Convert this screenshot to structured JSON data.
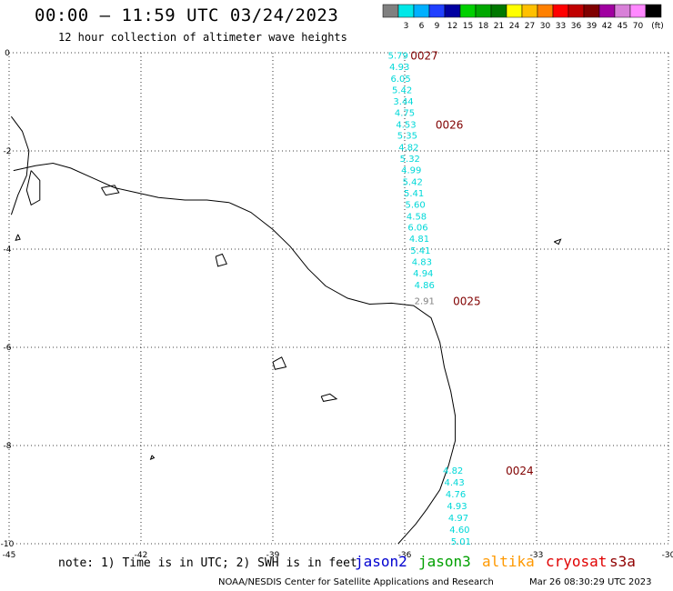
{
  "title": "00:00 — 11:59 UTC 03/24/2023",
  "subtitle": "12 hour collection of altimeter wave heights",
  "legend": {
    "unit": "(ft)",
    "swatches": [
      {
        "label": "",
        "color": "#808080"
      },
      {
        "label": "3",
        "color": "#00e8e8"
      },
      {
        "label": "6",
        "color": "#00b0ff"
      },
      {
        "label": "9",
        "color": "#2040ff"
      },
      {
        "label": "12",
        "color": "#0000a0"
      },
      {
        "label": "15",
        "color": "#00d000"
      },
      {
        "label": "18",
        "color": "#00a800"
      },
      {
        "label": "21",
        "color": "#007800"
      },
      {
        "label": "24",
        "color": "#ffff00"
      },
      {
        "label": "27",
        "color": "#ffc000"
      },
      {
        "label": "30",
        "color": "#ff8000"
      },
      {
        "label": "33",
        "color": "#ff0000"
      },
      {
        "label": "36",
        "color": "#c00000"
      },
      {
        "label": "39",
        "color": "#800000"
      },
      {
        "label": "42",
        "color": "#a000a0"
      },
      {
        "label": "45",
        "color": "#d880d8"
      },
      {
        "label": "70",
        "color": "#ff88ff"
      },
      {
        "label": "",
        "color": "#000000"
      }
    ]
  },
  "axes": {
    "x_ticks": [
      {
        "value": -45,
        "label": "-45"
      },
      {
        "value": -42,
        "label": "-42"
      },
      {
        "value": -39,
        "label": "-39"
      },
      {
        "value": -36,
        "label": "-36"
      },
      {
        "value": -33,
        "label": "-33"
      },
      {
        "value": -30,
        "label": "-30"
      }
    ],
    "y_ticks": [
      {
        "value": 0,
        "label": "0"
      },
      {
        "value": -2,
        "label": "-2"
      },
      {
        "value": -4,
        "label": "-4"
      },
      {
        "value": -6,
        "label": "-6"
      },
      {
        "value": -8,
        "label": "-8"
      },
      {
        "value": -10,
        "label": "-10"
      }
    ],
    "xlim": [
      -45,
      -30
    ],
    "ylim": [
      -10,
      0
    ]
  },
  "colors": {
    "cyan": "#00d8d8",
    "gray": "#808080",
    "time_label": "#800000",
    "coast": "#000000"
  },
  "tracks": [
    {
      "time_label": "0027",
      "time_label_pos": {
        "lon": -35.87,
        "lat": -0.05
      },
      "points": [
        {
          "lon": -36.15,
          "lat": -0.05,
          "value": "5.79"
        },
        {
          "lon": -36.12,
          "lat": -0.28,
          "value": "4.93"
        },
        {
          "lon": -36.09,
          "lat": -0.52,
          "value": "6.05"
        },
        {
          "lon": -36.06,
          "lat": -0.75,
          "value": "5.42"
        },
        {
          "lon": -36.03,
          "lat": -0.98,
          "value": "3.44"
        },
        {
          "lon": -36.0,
          "lat": -1.21,
          "value": "4.75"
        },
        {
          "lon": -35.97,
          "lat": -1.45,
          "value": "4.53"
        },
        {
          "lon": -35.94,
          "lat": -1.68,
          "value": "5.35"
        },
        {
          "lon": -35.91,
          "lat": -1.92,
          "value": "4.82"
        },
        {
          "lon": -35.88,
          "lat": -2.15,
          "value": "5.32"
        },
        {
          "lon": -35.85,
          "lat": -2.38,
          "value": "4.99"
        },
        {
          "lon": -35.82,
          "lat": -2.62,
          "value": "5.42"
        },
        {
          "lon": -35.79,
          "lat": -2.85,
          "value": "5.41"
        },
        {
          "lon": -35.76,
          "lat": -3.08,
          "value": "5.60"
        },
        {
          "lon": -35.73,
          "lat": -3.32,
          "value": "4.58"
        },
        {
          "lon": -35.7,
          "lat": -3.55,
          "value": "6.06"
        },
        {
          "lon": -35.67,
          "lat": -3.78,
          "value": "4.81"
        },
        {
          "lon": -35.64,
          "lat": -4.02,
          "value": "5.41"
        },
        {
          "lon": -35.61,
          "lat": -4.25,
          "value": "4.83"
        },
        {
          "lon": -35.58,
          "lat": -4.48,
          "value": "4.94"
        },
        {
          "lon": -35.55,
          "lat": -4.72,
          "value": "4.86"
        }
      ]
    },
    {
      "time_label": "0026",
      "time_label_pos": {
        "lon": -35.3,
        "lat": -1.45
      },
      "points": []
    },
    {
      "time_label": "0025",
      "time_label_pos": {
        "lon": -34.9,
        "lat": -5.05
      },
      "points": [
        {
          "lon": -35.55,
          "lat": -5.05,
          "value": "2.91",
          "gray": true
        }
      ]
    },
    {
      "time_label": "0024",
      "time_label_pos": {
        "lon": -33.7,
        "lat": -8.5
      },
      "points": [
        {
          "lon": -34.9,
          "lat": -8.5,
          "value": "4.82"
        },
        {
          "lon": -34.87,
          "lat": -8.74,
          "value": "4.43"
        },
        {
          "lon": -34.84,
          "lat": -8.98,
          "value": "4.76"
        },
        {
          "lon": -34.81,
          "lat": -9.22,
          "value": "4.93"
        },
        {
          "lon": -34.78,
          "lat": -9.46,
          "value": "4.97"
        },
        {
          "lon": -34.75,
          "lat": -9.7,
          "value": "4.60"
        },
        {
          "lon": -34.72,
          "lat": -9.94,
          "value": "5.01"
        }
      ]
    }
  ],
  "coastline": [
    [
      -44.9,
      -2.4
    ],
    [
      -44.4,
      -2.3
    ],
    [
      -44.0,
      -2.25
    ],
    [
      -43.6,
      -2.35
    ],
    [
      -43.1,
      -2.55
    ],
    [
      -42.6,
      -2.75
    ],
    [
      -42.1,
      -2.85
    ],
    [
      -41.6,
      -2.95
    ],
    [
      -41.0,
      -3.0
    ],
    [
      -40.5,
      -3.0
    ],
    [
      -40.0,
      -3.05
    ],
    [
      -39.5,
      -3.25
    ],
    [
      -39.0,
      -3.6
    ],
    [
      -38.6,
      -3.95
    ],
    [
      -38.2,
      -4.4
    ],
    [
      -37.8,
      -4.75
    ],
    [
      -37.3,
      -5.0
    ],
    [
      -36.8,
      -5.12
    ],
    [
      -36.3,
      -5.1
    ],
    [
      -35.8,
      -5.15
    ],
    [
      -35.4,
      -5.4
    ],
    [
      -35.2,
      -5.9
    ],
    [
      -35.1,
      -6.4
    ],
    [
      -34.95,
      -6.9
    ],
    [
      -34.85,
      -7.4
    ],
    [
      -34.85,
      -7.9
    ],
    [
      -35.0,
      -8.4
    ],
    [
      -35.2,
      -8.9
    ],
    [
      -35.5,
      -9.3
    ],
    [
      -35.75,
      -9.6
    ],
    [
      -36.0,
      -9.85
    ],
    [
      -36.15,
      -10.0
    ]
  ],
  "islands": [
    [
      [
        -44.95,
        -1.3
      ],
      [
        -44.7,
        -1.6
      ],
      [
        -44.55,
        -2.0
      ],
      [
        -44.6,
        -2.5
      ],
      [
        -44.8,
        -2.9
      ],
      [
        -44.95,
        -3.3
      ]
    ],
    [
      [
        -44.5,
        -2.4
      ],
      [
        -44.3,
        -2.6
      ],
      [
        -44.3,
        -3.0
      ],
      [
        -44.5,
        -3.1
      ],
      [
        -44.6,
        -2.8
      ],
      [
        -44.5,
        -2.4
      ]
    ],
    [
      [
        -42.9,
        -2.75
      ],
      [
        -42.6,
        -2.7
      ],
      [
        -42.5,
        -2.85
      ],
      [
        -42.8,
        -2.9
      ],
      [
        -42.9,
        -2.75
      ]
    ],
    [
      [
        -40.3,
        -4.15
      ],
      [
        -40.15,
        -4.1
      ],
      [
        -40.05,
        -4.3
      ],
      [
        -40.25,
        -4.35
      ],
      [
        -40.3,
        -4.15
      ]
    ],
    [
      [
        -39.0,
        -6.3
      ],
      [
        -38.8,
        -6.2
      ],
      [
        -38.7,
        -6.4
      ],
      [
        -38.95,
        -6.45
      ],
      [
        -39.0,
        -6.3
      ]
    ],
    [
      [
        -37.9,
        -7.0
      ],
      [
        -37.7,
        -6.95
      ],
      [
        -37.55,
        -7.05
      ],
      [
        -37.85,
        -7.1
      ],
      [
        -37.9,
        -7.0
      ]
    ],
    [
      [
        -41.75,
        -8.2
      ],
      [
        -41.7,
        -8.25
      ],
      [
        -41.78,
        -8.28
      ],
      [
        -41.75,
        -8.2
      ]
    ],
    [
      [
        -32.6,
        -3.85
      ],
      [
        -32.45,
        -3.8
      ],
      [
        -32.5,
        -3.9
      ],
      [
        -32.6,
        -3.85
      ]
    ],
    [
      [
        -44.8,
        -3.7
      ],
      [
        -44.75,
        -3.8
      ],
      [
        -44.85,
        -3.82
      ],
      [
        -44.8,
        -3.7
      ]
    ]
  ],
  "note": "note: 1) Time is in UTC; 2) SWH is in feet",
  "satellites": [
    {
      "name": "jason2",
      "color": "#0000d0"
    },
    {
      "name": "jason3",
      "color": "#00a000"
    },
    {
      "name": "altika",
      "color": "#ff9900"
    },
    {
      "name": "cryosat",
      "color": "#e00000"
    },
    {
      "name": "s3a",
      "color": "#900000"
    }
  ],
  "credit": "NOAA/NESDIS Center for Satellite Applications and Research",
  "timestamp": "Mar 26 08:30:29 UTC 2023"
}
